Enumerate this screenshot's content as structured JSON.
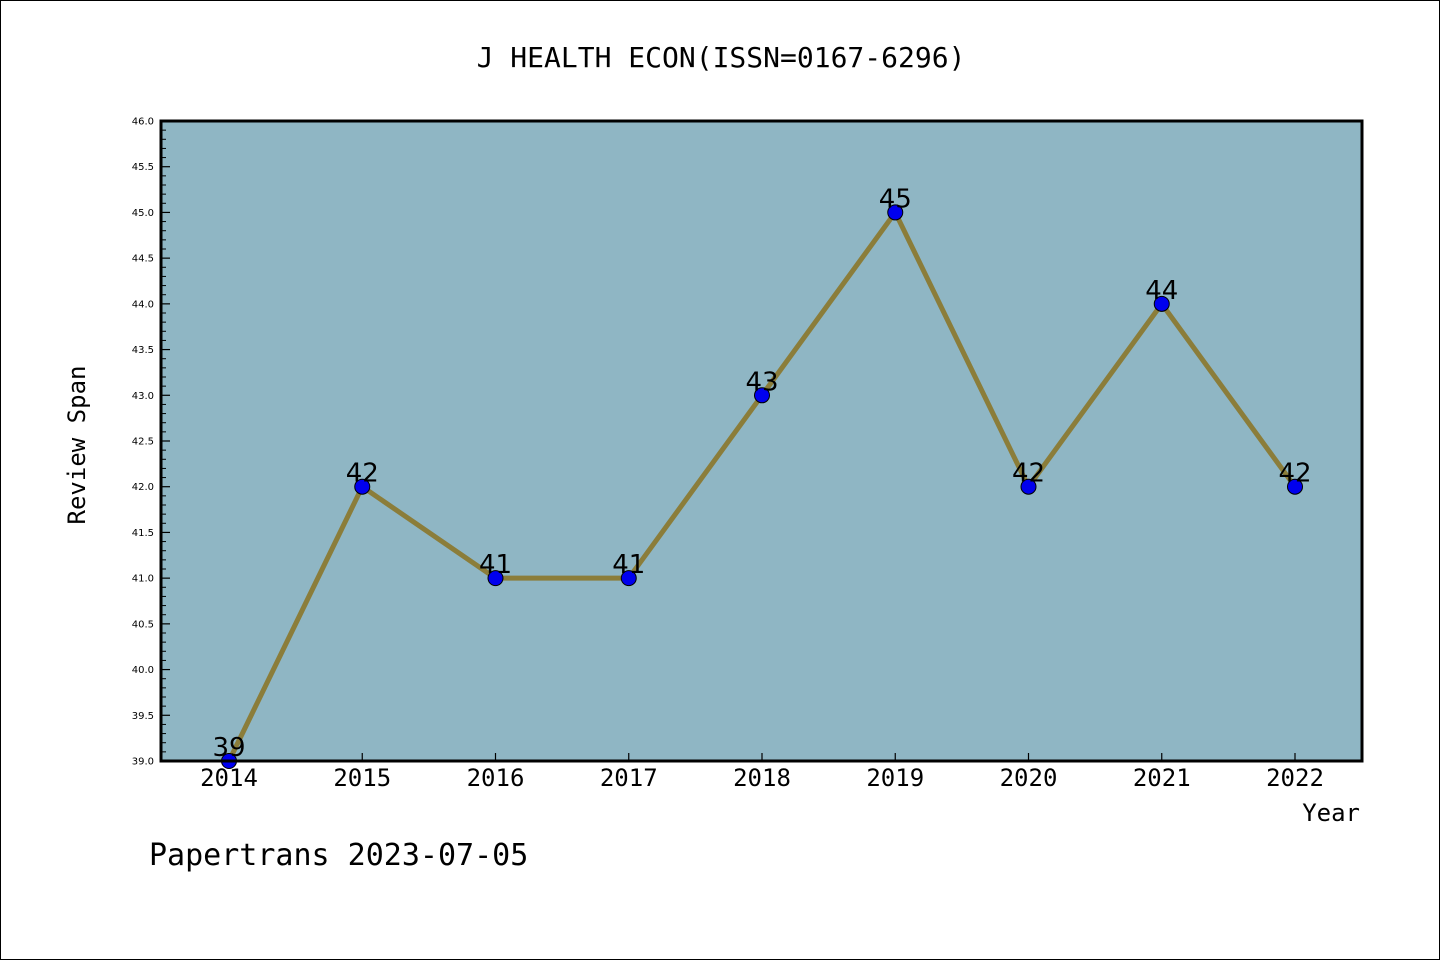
{
  "chart_data": {
    "type": "line",
    "title": "J HEALTH ECON(ISSN=0167-6296)",
    "xlabel": "Year",
    "ylabel": "Review Span",
    "x": [
      "2014",
      "2015",
      "2016",
      "2017",
      "2018",
      "2019",
      "2020",
      "2021",
      "2022"
    ],
    "series": [
      {
        "values": [
          39,
          42,
          41,
          41,
          43,
          45,
          42,
          44,
          42
        ]
      }
    ],
    "data_labels": [
      "39",
      "42",
      "41",
      "41",
      "43",
      "45",
      "42",
      "44",
      "42"
    ],
    "ylim": [
      39.0,
      46.0
    ],
    "yticks": [
      "39.0",
      "39.5",
      "40.0",
      "40.5",
      "41.0",
      "41.5",
      "42.0",
      "42.5",
      "43.0",
      "43.5",
      "44.0",
      "44.5",
      "45.0",
      "45.5",
      "46.0"
    ],
    "grid": false,
    "legend": "none",
    "colors": {
      "plot_background": "#8fb6c4",
      "line": "#8b7d3a",
      "marker": "#0000ee"
    }
  },
  "footer": {
    "watermark": "Papertrans 2023-07-05"
  }
}
